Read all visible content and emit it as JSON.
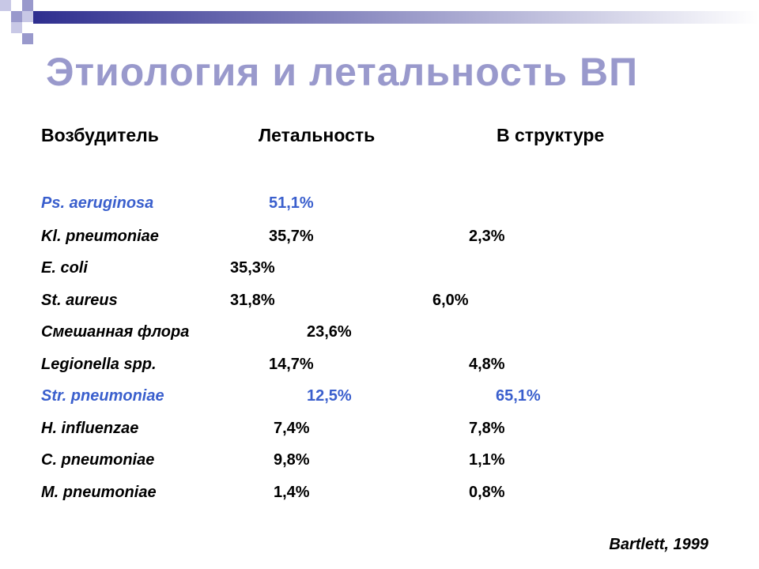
{
  "title": "Этиология и летальность ВП",
  "table": {
    "header": [
      "Возбудитель",
      "Летальность",
      "В структуре"
    ],
    "rows": [
      {
        "cells": [
          "Ps. aeruginosa",
          "51,1%"
        ],
        "color": "#3a5fcd"
      },
      {
        "cells": [
          "Kl. pneumoniae",
          "35,7%",
          "2,3%"
        ]
      },
      {
        "cells": [
          "E. coli",
          "35,3%"
        ]
      },
      {
        "cells": [
          "St. aureus",
          "31,8%",
          "6,0%"
        ]
      },
      {
        "cells": [
          "Смешанная флора",
          "23,6%"
        ]
      },
      {
        "cells": [
          "Legionella spp.",
          "14,7%",
          "4,8%"
        ]
      },
      {
        "cells": [
          "Str. pneumoniae",
          "12,5%",
          "65,1%"
        ],
        "color": "#3a5fcd"
      },
      {
        "cells": [
          "H. influenzae",
          "7,4%",
          "7,8%"
        ]
      },
      {
        "cells": [
          "C. pneumoniae",
          "9,8%",
          "1,1%"
        ]
      },
      {
        "cells": [
          "M. pneumoniae",
          "1,4%",
          "0,8%"
        ]
      }
    ]
  },
  "source": "Bartlett, 1999"
}
